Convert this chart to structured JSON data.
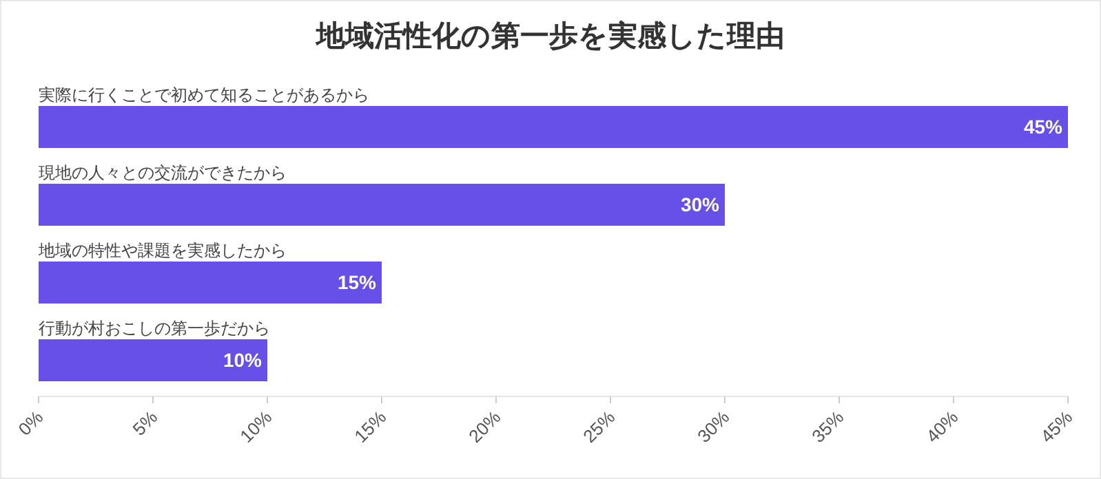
{
  "chart_data": {
    "type": "bar",
    "orientation": "horizontal",
    "title": "地域活性化の第一歩を実感した理由",
    "categories": [
      "実際に行くことで初めて知ることがあるから",
      "現地の人々との交流ができたから",
      "地域の特性や課題を実感したから",
      "行動が村おこしの第一歩だから"
    ],
    "values": [
      45,
      30,
      15,
      10
    ],
    "value_labels": [
      "45%",
      "30%",
      "15%",
      "10%"
    ],
    "color": "#6650e8",
    "xlim": [
      0,
      45
    ],
    "xticks": [
      {
        "value": 0,
        "label": "0%"
      },
      {
        "value": 5,
        "label": "5%"
      },
      {
        "value": 10,
        "label": "10%"
      },
      {
        "value": 15,
        "label": "15%"
      },
      {
        "value": 20,
        "label": "20%"
      },
      {
        "value": 25,
        "label": "25%"
      },
      {
        "value": 30,
        "label": "30%"
      },
      {
        "value": 35,
        "label": "35%"
      },
      {
        "value": 40,
        "label": "40%"
      },
      {
        "value": 45,
        "label": "45%"
      }
    ]
  }
}
